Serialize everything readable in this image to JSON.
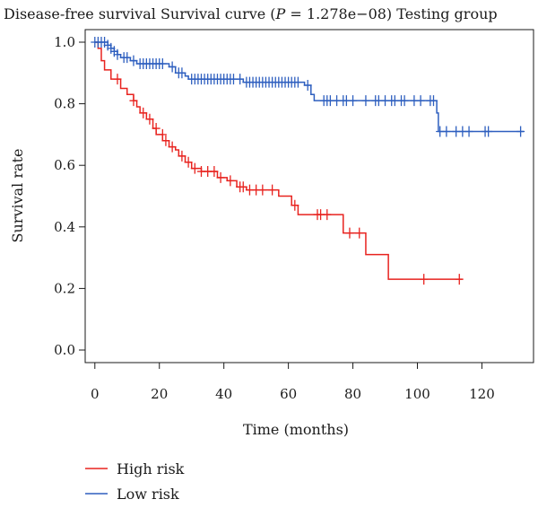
{
  "chart_data": {
    "type": "line",
    "title_prefix": "Disease-free survival Survival curve (",
    "title_p_symbol": "P",
    "title_suffix": " = 1.278e−08) Testing group",
    "xlabel": "Time (months)",
    "ylabel": "Survival rate",
    "xlim": [
      -3,
      136
    ],
    "ylim": [
      0,
      1.0
    ],
    "x_ticks": [
      0,
      20,
      40,
      60,
      80,
      100,
      120
    ],
    "y_ticks": [
      0.0,
      0.2,
      0.4,
      0.6,
      0.8,
      1.0
    ],
    "y_tick_labels": [
      "0.0",
      "0.2",
      "0.4",
      "0.6",
      "0.8",
      "1.0"
    ],
    "legend_placement": "bottom-left",
    "series": [
      {
        "name": "High risk",
        "color": "#e8231f",
        "steps": [
          [
            0,
            1.0
          ],
          [
            1,
            0.98
          ],
          [
            2,
            0.94
          ],
          [
            3,
            0.91
          ],
          [
            5,
            0.88
          ],
          [
            8,
            0.85
          ],
          [
            10,
            0.83
          ],
          [
            12,
            0.81
          ],
          [
            13,
            0.79
          ],
          [
            14,
            0.77
          ],
          [
            16,
            0.75
          ],
          [
            18,
            0.72
          ],
          [
            19,
            0.7
          ],
          [
            21,
            0.68
          ],
          [
            23,
            0.66
          ],
          [
            25,
            0.65
          ],
          [
            26,
            0.63
          ],
          [
            28,
            0.61
          ],
          [
            30,
            0.59
          ],
          [
            33,
            0.58
          ],
          [
            38,
            0.56
          ],
          [
            41,
            0.55
          ],
          [
            44,
            0.53
          ],
          [
            47,
            0.52
          ],
          [
            57,
            0.5
          ],
          [
            61,
            0.47
          ],
          [
            63,
            0.44
          ],
          [
            77,
            0.38
          ],
          [
            84,
            0.31
          ],
          [
            91,
            0.23
          ],
          [
            114,
            0.23
          ]
        ],
        "censored": [
          [
            7,
            0.88
          ],
          [
            12,
            0.81
          ],
          [
            15,
            0.77
          ],
          [
            17,
            0.75
          ],
          [
            19,
            0.72
          ],
          [
            21,
            0.7
          ],
          [
            22,
            0.68
          ],
          [
            24,
            0.66
          ],
          [
            27,
            0.63
          ],
          [
            29,
            0.61
          ],
          [
            31,
            0.59
          ],
          [
            33,
            0.58
          ],
          [
            35,
            0.58
          ],
          [
            37,
            0.58
          ],
          [
            39,
            0.56
          ],
          [
            42,
            0.55
          ],
          [
            45,
            0.53
          ],
          [
            46,
            0.53
          ],
          [
            48,
            0.52
          ],
          [
            50,
            0.52
          ],
          [
            52,
            0.52
          ],
          [
            55,
            0.52
          ],
          [
            62,
            0.47
          ],
          [
            69,
            0.44
          ],
          [
            70,
            0.44
          ],
          [
            72,
            0.44
          ],
          [
            79,
            0.38
          ],
          [
            82,
            0.38
          ],
          [
            102,
            0.23
          ],
          [
            113,
            0.23
          ]
        ]
      },
      {
        "name": "Low risk",
        "color": "#2e5fbf",
        "steps": [
          [
            0,
            1.0
          ],
          [
            4,
            0.99
          ],
          [
            5,
            0.98
          ],
          [
            6,
            0.97
          ],
          [
            7,
            0.96
          ],
          [
            8,
            0.95
          ],
          [
            11,
            0.94
          ],
          [
            13,
            0.93
          ],
          [
            23,
            0.92
          ],
          [
            25,
            0.9
          ],
          [
            28,
            0.89
          ],
          [
            29,
            0.88
          ],
          [
            46,
            0.87
          ],
          [
            65,
            0.86
          ],
          [
            67,
            0.83
          ],
          [
            68,
            0.81
          ],
          [
            106,
            0.77
          ],
          [
            106.5,
            0.71
          ],
          [
            133,
            0.71
          ]
        ],
        "censored": [
          [
            0,
            1.0
          ],
          [
            1,
            1.0
          ],
          [
            2,
            1.0
          ],
          [
            3,
            1.0
          ],
          [
            4,
            0.99
          ],
          [
            5,
            0.98
          ],
          [
            6,
            0.97
          ],
          [
            7,
            0.96
          ],
          [
            9,
            0.95
          ],
          [
            10,
            0.95
          ],
          [
            12,
            0.94
          ],
          [
            14,
            0.93
          ],
          [
            15,
            0.93
          ],
          [
            16,
            0.93
          ],
          [
            17,
            0.93
          ],
          [
            18,
            0.93
          ],
          [
            19,
            0.93
          ],
          [
            20,
            0.93
          ],
          [
            21,
            0.93
          ],
          [
            24,
            0.92
          ],
          [
            26,
            0.9
          ],
          [
            27,
            0.9
          ],
          [
            30,
            0.88
          ],
          [
            31,
            0.88
          ],
          [
            32,
            0.88
          ],
          [
            33,
            0.88
          ],
          [
            34,
            0.88
          ],
          [
            35,
            0.88
          ],
          [
            36,
            0.88
          ],
          [
            37,
            0.88
          ],
          [
            38,
            0.88
          ],
          [
            39,
            0.88
          ],
          [
            40,
            0.88
          ],
          [
            41,
            0.88
          ],
          [
            42,
            0.88
          ],
          [
            43,
            0.88
          ],
          [
            45,
            0.88
          ],
          [
            47,
            0.87
          ],
          [
            48,
            0.87
          ],
          [
            49,
            0.87
          ],
          [
            50,
            0.87
          ],
          [
            51,
            0.87
          ],
          [
            52,
            0.87
          ],
          [
            53,
            0.87
          ],
          [
            54,
            0.87
          ],
          [
            55,
            0.87
          ],
          [
            56,
            0.87
          ],
          [
            57,
            0.87
          ],
          [
            58,
            0.87
          ],
          [
            59,
            0.87
          ],
          [
            60,
            0.87
          ],
          [
            61,
            0.87
          ],
          [
            62,
            0.87
          ],
          [
            63,
            0.87
          ],
          [
            66,
            0.86
          ],
          [
            71,
            0.81
          ],
          [
            72,
            0.81
          ],
          [
            73,
            0.81
          ],
          [
            75,
            0.81
          ],
          [
            77,
            0.81
          ],
          [
            78,
            0.81
          ],
          [
            80,
            0.81
          ],
          [
            84,
            0.81
          ],
          [
            87,
            0.81
          ],
          [
            88,
            0.81
          ],
          [
            90,
            0.81
          ],
          [
            92,
            0.81
          ],
          [
            93,
            0.81
          ],
          [
            95,
            0.81
          ],
          [
            96,
            0.81
          ],
          [
            99,
            0.81
          ],
          [
            101,
            0.81
          ],
          [
            104,
            0.81
          ],
          [
            105,
            0.81
          ],
          [
            107,
            0.71
          ],
          [
            109,
            0.71
          ],
          [
            112,
            0.71
          ],
          [
            114,
            0.71
          ],
          [
            116,
            0.71
          ],
          [
            121,
            0.71
          ],
          [
            122,
            0.71
          ],
          [
            132,
            0.71
          ]
        ]
      }
    ]
  }
}
